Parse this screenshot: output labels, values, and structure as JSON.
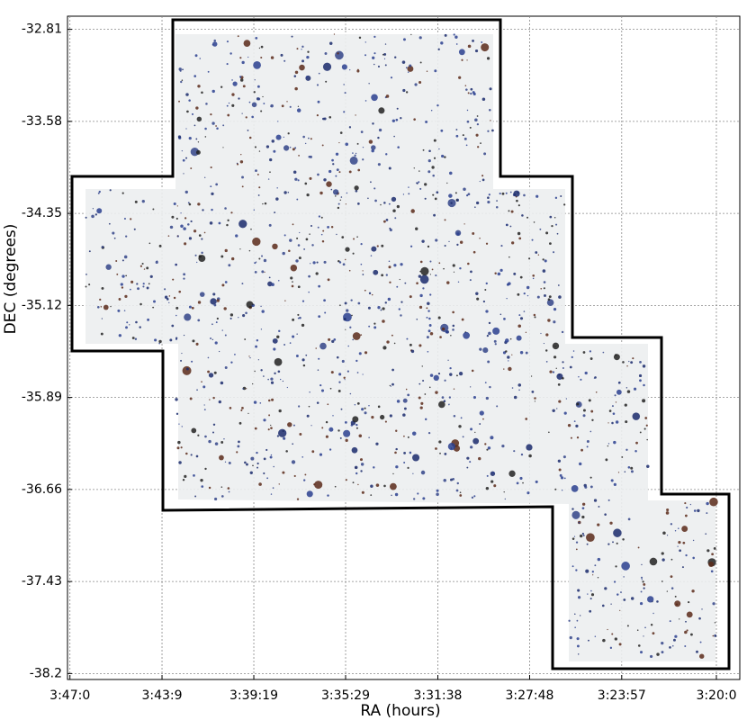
{
  "chart_data": {
    "type": "image",
    "x_label": "RA (hours)",
    "y_label": "DEC (degrees)",
    "xlim": [
      3.785,
      3.317
    ],
    "ylim": [
      -32.7,
      -38.25
    ],
    "xticks": [
      {
        "value": 3.7833,
        "label": "3:47:0"
      },
      {
        "value": 3.7192,
        "label": "3:43:9"
      },
      {
        "value": 3.6553,
        "label": "3:39:19"
      },
      {
        "value": 3.5914,
        "label": "3:35:29"
      },
      {
        "value": 3.5272,
        "label": "3:31:38"
      },
      {
        "value": 3.4633,
        "label": "3:27:48"
      },
      {
        "value": 3.3992,
        "label": "3:23:57"
      },
      {
        "value": 3.3333,
        "label": "3:20:0"
      }
    ],
    "yticks": [
      -32.81,
      -33.58,
      -34.35,
      -35.12,
      -35.89,
      -36.66,
      -37.43,
      -38.2
    ],
    "grid": true
  }
}
